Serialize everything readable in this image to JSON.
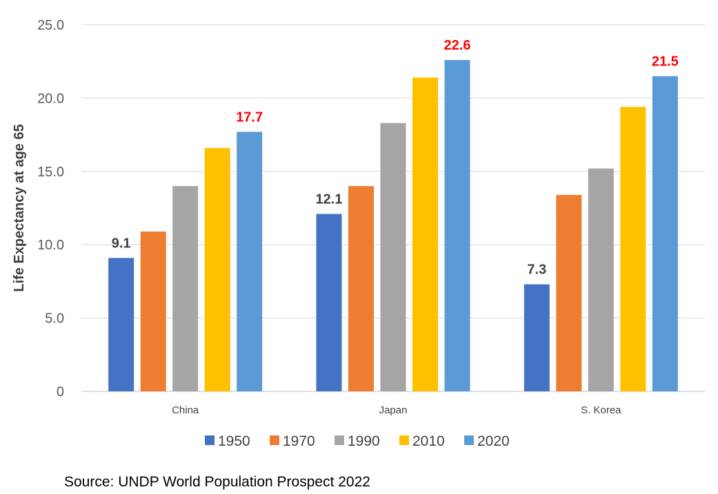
{
  "chart_data": {
    "type": "bar",
    "title": "",
    "xlabel": "",
    "ylabel": "Life Expectancy at age 65",
    "ylim": [
      0,
      25
    ],
    "yticks": [
      0,
      5,
      10,
      15,
      20,
      25
    ],
    "ytick_labels": [
      "0",
      "5.0",
      "10.0",
      "15.0",
      "20.0",
      "25.0"
    ],
    "grid": true,
    "categories": [
      "China",
      "Japan",
      "S. Korea"
    ],
    "series": [
      {
        "name": "1950",
        "color": "#4472C4",
        "values": [
          9.1,
          12.1,
          7.3
        ]
      },
      {
        "name": "1970",
        "color": "#ED7D31",
        "values": [
          10.9,
          14.0,
          13.4
        ]
      },
      {
        "name": "1990",
        "color": "#A5A5A5",
        "values": [
          14.0,
          18.3,
          15.2
        ]
      },
      {
        "name": "2010",
        "color": "#FFC000",
        "values": [
          16.6,
          21.4,
          19.4
        ]
      },
      {
        "name": "2020",
        "color": "#5B9BD5",
        "values": [
          17.7,
          22.6,
          21.5
        ]
      }
    ],
    "data_labels": [
      {
        "series": "1950",
        "category": "China",
        "text": "9.1",
        "color": "#404040"
      },
      {
        "series": "1950",
        "category": "Japan",
        "text": "12.1",
        "color": "#404040"
      },
      {
        "series": "1950",
        "category": "S. Korea",
        "text": "7.3",
        "color": "#404040"
      },
      {
        "series": "2020",
        "category": "China",
        "text": "17.7",
        "color": "#FF0000"
      },
      {
        "series": "2020",
        "category": "Japan",
        "text": "22.6",
        "color": "#FF0000"
      },
      {
        "series": "2020",
        "category": "S. Korea",
        "text": "21.5",
        "color": "#FF0000"
      }
    ],
    "legend_position": "bottom"
  },
  "source_note": "Source: UNDP World Population Prospect 2022"
}
